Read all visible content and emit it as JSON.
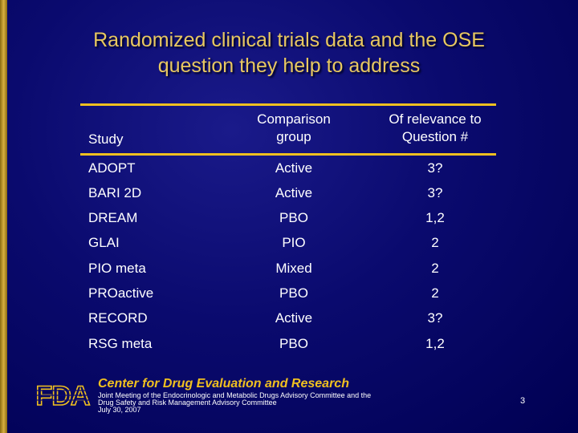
{
  "title": {
    "line1": "Randomized clinical trials data and the OSE",
    "line2": "question they help to address"
  },
  "table": {
    "headers": {
      "study": "Study",
      "comparison_line1": "Comparison",
      "comparison_line2": "group",
      "relevance_line1": "Of relevance to",
      "relevance_line2": "Question #"
    },
    "rows": [
      {
        "study": "ADOPT",
        "comparison": "Active",
        "question": "3?"
      },
      {
        "study": "BARI 2D",
        "comparison": "Active",
        "question": "3?"
      },
      {
        "study": "DREAM",
        "comparison": "PBO",
        "question": "1,2"
      },
      {
        "study": "GLAI",
        "comparison": "PIO",
        "question": "2"
      },
      {
        "study": "PIO meta",
        "comparison": "Mixed",
        "question": "2"
      },
      {
        "study": "PROactive",
        "comparison": "PBO",
        "question": "2"
      },
      {
        "study": "RECORD",
        "comparison": "Active",
        "question": "3?"
      },
      {
        "study": "RSG meta",
        "comparison": "PBO",
        "question": "1,2"
      }
    ]
  },
  "footer": {
    "organization": "Center for Drug Evaluation and Research",
    "meeting_line1": "Joint Meeting of the Endocrinologic and Metabolic Drugs Advisory Committee and the",
    "meeting_line2": "Drug Safety and Risk Management Advisory Committee",
    "meeting_date": "July 30, 2007",
    "page_number": "3",
    "logo_text": "FDA"
  },
  "colors": {
    "background": "#0a0a6e",
    "title": "#e8c860",
    "rule": "#f0c020",
    "text": "#ffffff",
    "left_bar": "#d8b040"
  }
}
